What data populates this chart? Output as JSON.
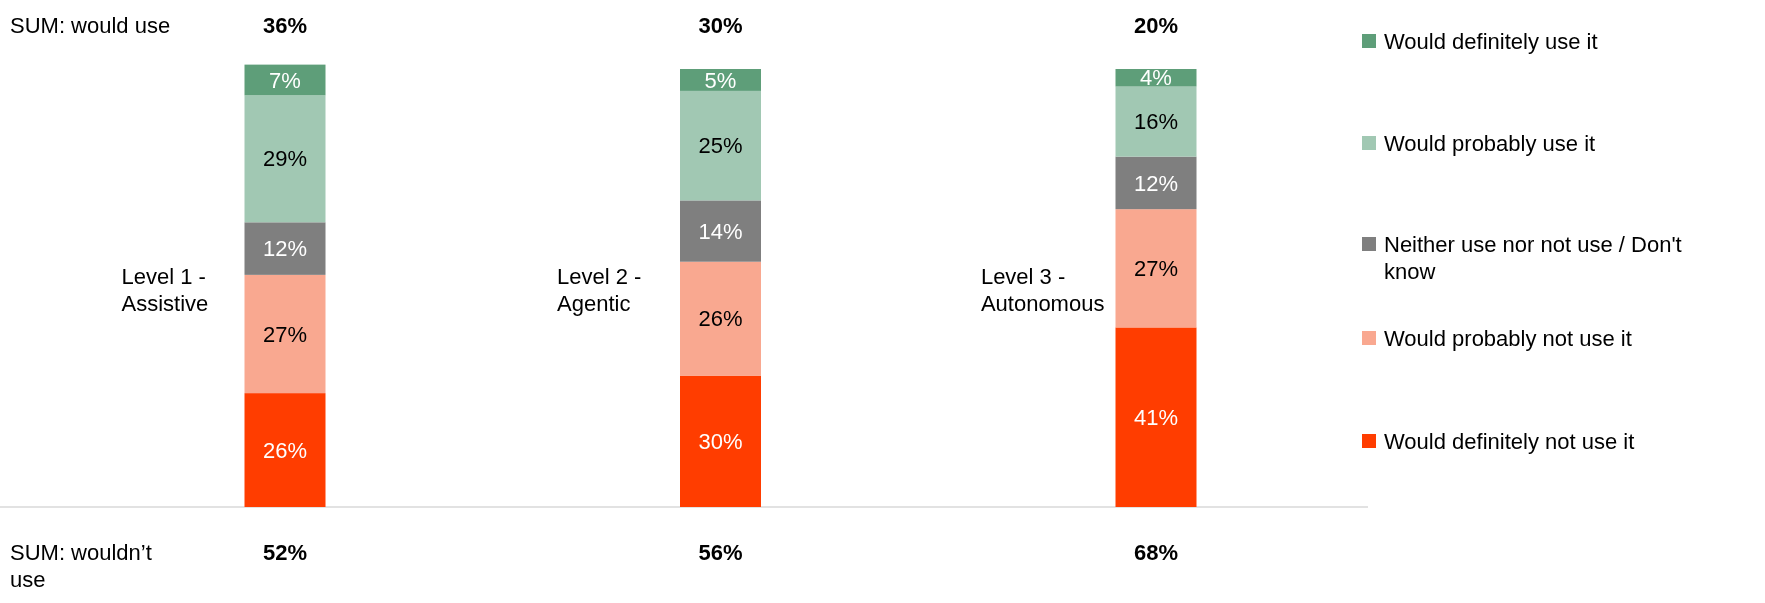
{
  "chart_data": {
    "type": "bar",
    "stacked": true,
    "tick_labels": "x",
    "legend": "right",
    "categories": [
      "Level 1 - Assistive",
      "Level 2 - Agentic",
      "Level 3 - Autonomous"
    ],
    "series": [
      {
        "name": "Would definitely not use it",
        "color": "#ff3d00",
        "values": [
          26,
          30,
          41
        ],
        "value_labels": [
          "26%",
          "30%",
          "41%"
        ]
      },
      {
        "name": "Would probably not use it",
        "color": "#f9a890",
        "values": [
          27,
          26,
          27
        ],
        "value_labels": [
          "27%",
          "26%",
          "27%"
        ]
      },
      {
        "name": "Neither use nor not use / Don't know",
        "color": "#7f7f7f",
        "values": [
          12,
          14,
          12
        ],
        "value_labels": [
          "12%",
          "14%",
          "12%"
        ]
      },
      {
        "name": "Would probably use it",
        "color": "#a1c8b3",
        "values": [
          29,
          25,
          16
        ],
        "value_labels": [
          "29%",
          "25%",
          "16%"
        ]
      },
      {
        "name": "Would definitely use it",
        "color": "#5e9e79",
        "values": [
          7,
          5,
          4
        ],
        "value_labels": [
          "7%",
          "5%",
          "4%"
        ]
      }
    ],
    "annotations": [
      "SUM: would use",
      "36%",
      "30%",
      "20%",
      "SUM: wouldn’t use",
      "52%",
      "56%",
      "68%"
    ]
  }
}
